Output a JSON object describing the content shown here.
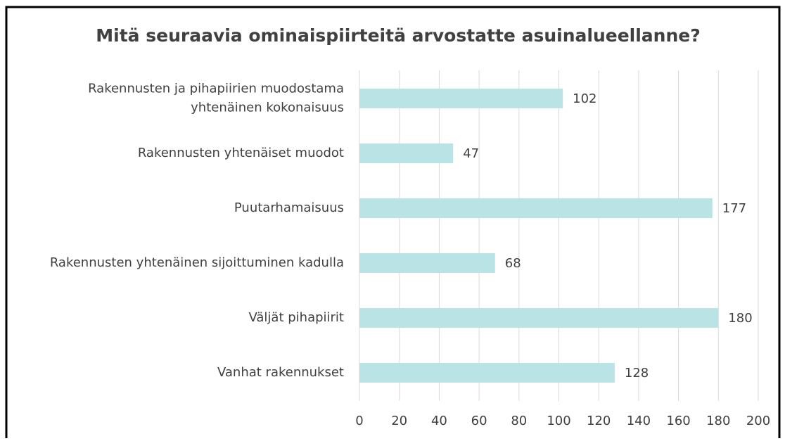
{
  "chart_data": {
    "type": "barh",
    "title": "Mitä seuraavia ominaispiirteitä arvostatte asuinalueellanne?",
    "categories": [
      "Rakennusten ja pihapiirien muodostama yhtenäinen kokonaisuus",
      "Rakennusten yhtenäiset muodot",
      "Puutarhamaisuus",
      "Rakennusten yhtenäinen sijoittuminen kadulla",
      "Väljät pihapiirit",
      "Vanhat rakennukset"
    ],
    "values": [
      102,
      47,
      177,
      68,
      180,
      128
    ],
    "color": "#b9e3e5",
    "xlim": [
      0,
      200
    ],
    "xticks": [
      0,
      20,
      40,
      60,
      80,
      100,
      120,
      140,
      160,
      180,
      200
    ],
    "grid": true
  }
}
